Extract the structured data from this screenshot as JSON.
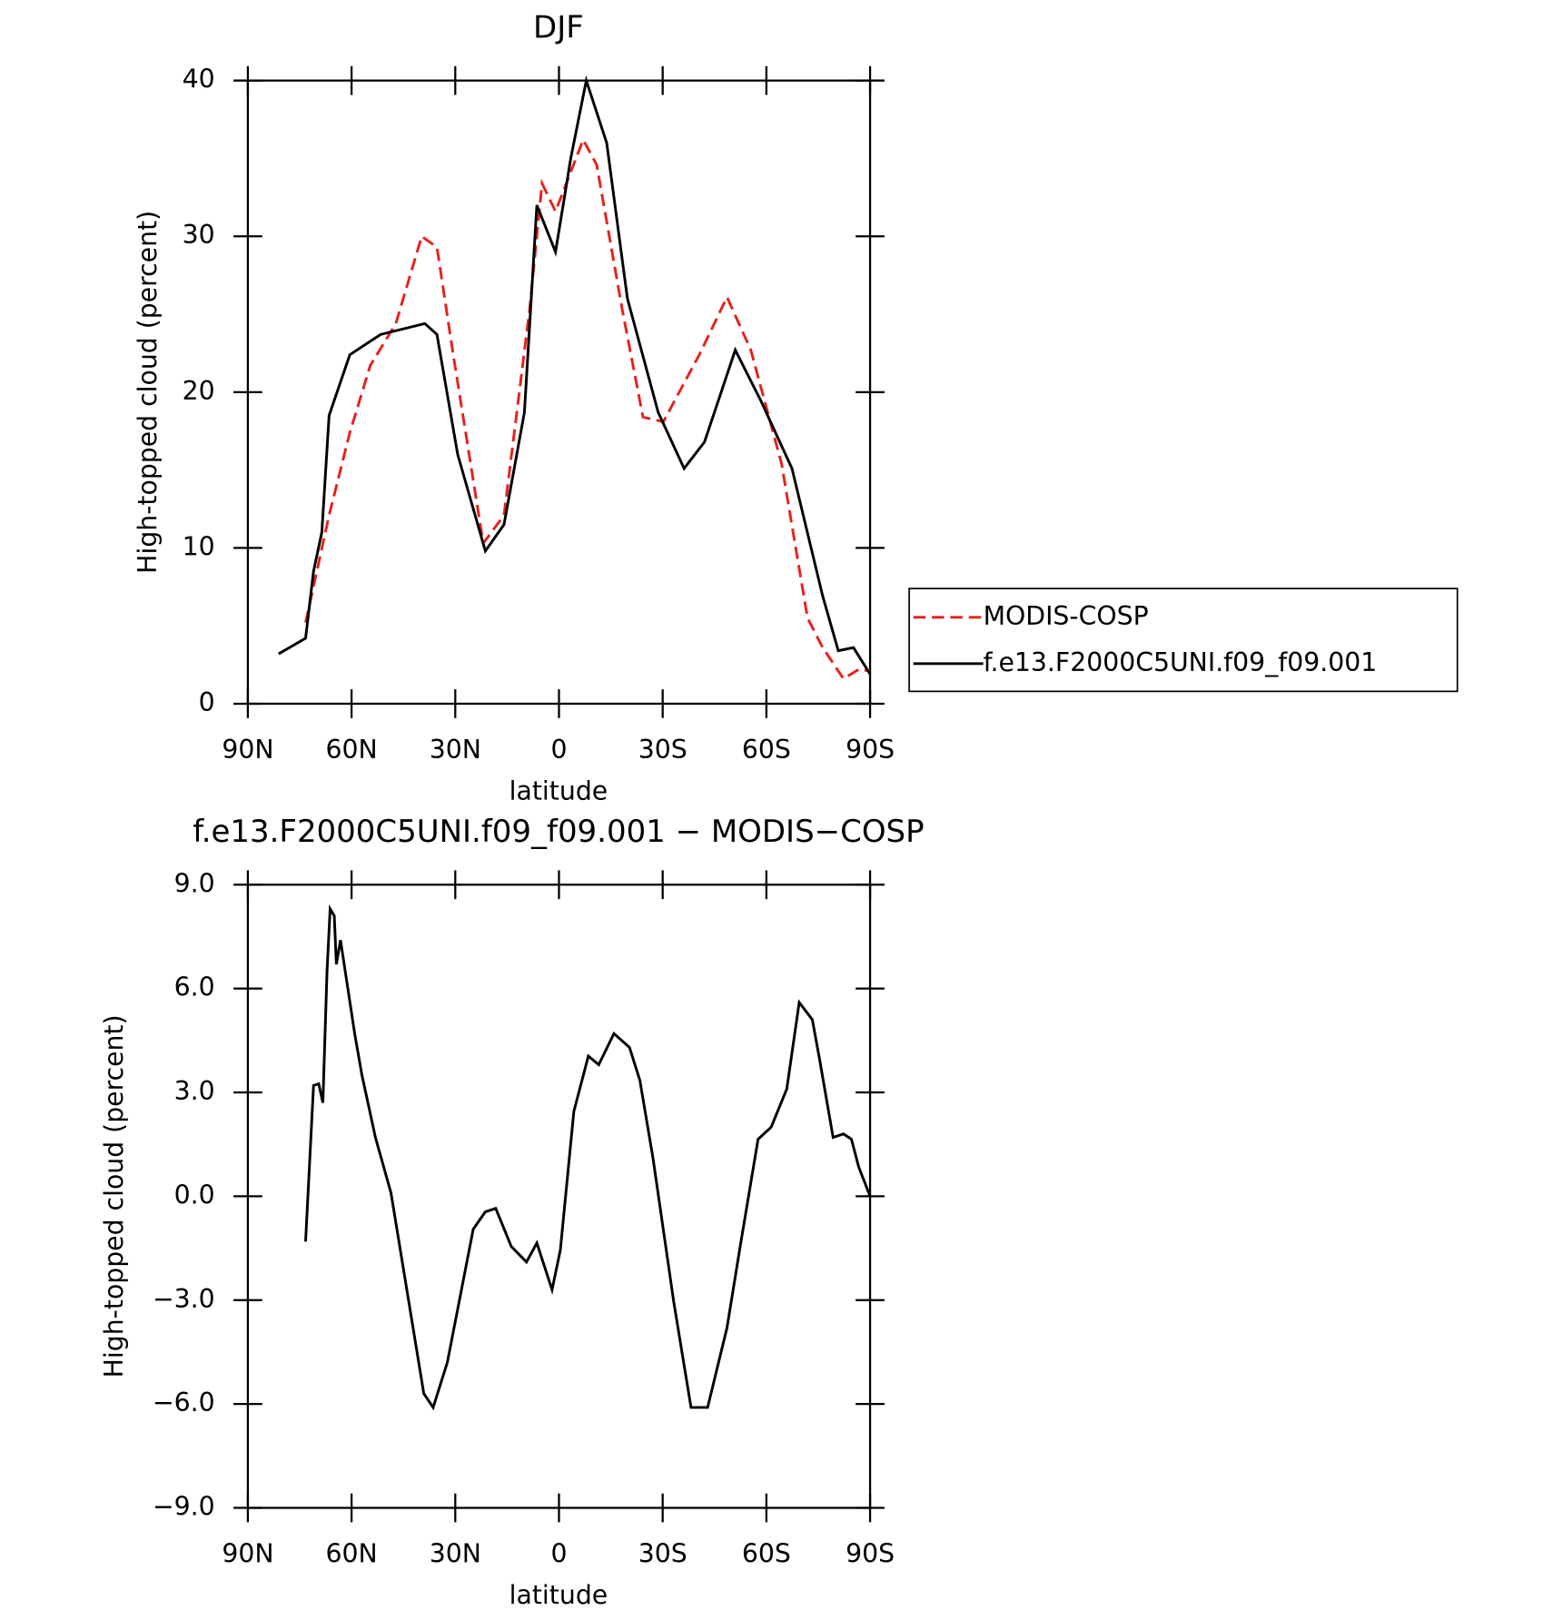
{
  "chart_data": [
    {
      "type": "line",
      "title": "DJF",
      "xlabel": "latitude",
      "ylabel": "High-topped cloud (percent)",
      "xlim": [
        90,
        -90
      ],
      "xticks": [
        {
          "value": 90,
          "label": "90N"
        },
        {
          "value": 60,
          "label": "60N"
        },
        {
          "value": 30,
          "label": "30N"
        },
        0,
        {
          "value": -30,
          "label": "30S"
        },
        {
          "value": -60,
          "label": "60S"
        },
        {
          "value": -90,
          "label": "90S"
        }
      ],
      "ylim": [
        0,
        40
      ],
      "yticks": [
        0,
        10,
        20,
        30,
        40
      ],
      "legend": "outside-right",
      "series": [
        {
          "name": "MODIS-COSP",
          "color": "#e8201c",
          "dash": "dashed",
          "x": [
            73.3,
            66.5,
            60.5,
            54.6,
            47.2,
            39.7,
            35.3,
            30.8,
            21.9,
            15.9,
            8.5,
            4.9,
            1,
            -7,
            -10.9,
            -18.3,
            -24.3,
            -30.2,
            -40.6,
            -48.6,
            -55.5,
            -64.4,
            -71.9,
            -76.3,
            -82.3,
            -86.7,
            -90
          ],
          "values": [
            5.2,
            12.1,
            17.4,
            21.7,
            24.4,
            30,
            29.3,
            22.7,
            10.3,
            12.1,
            25.3,
            33.4,
            31.6,
            36.2,
            34.6,
            25.3,
            18.4,
            18.1,
            22.4,
            26.1,
            22.7,
            15.4,
            5.5,
            3.6,
            1.6,
            2.2,
            2.1
          ]
        },
        {
          "name": "f.e13.F2000C5UNI.f09_f09.001",
          "color": "#000000",
          "dash": "solid",
          "x": [
            81.1,
            73.3,
            71,
            68.6,
            66.5,
            60.5,
            51.6,
            38.8,
            35.3,
            29.3,
            21.3,
            15.9,
            10,
            6.4,
            1,
            -3.4,
            -7.9,
            -13.8,
            -19.8,
            -28.7,
            -36.2,
            -42.1,
            -51,
            -58.5,
            -67.4,
            -76.3,
            -80.8,
            -85.2,
            -90
          ],
          "values": [
            3.2,
            4.2,
            8.5,
            11,
            18.5,
            22.4,
            23.7,
            24.4,
            23.7,
            16,
            9.8,
            11.5,
            18.7,
            32,
            29,
            35,
            40,
            36,
            26,
            18.7,
            15.1,
            16.8,
            22.7,
            19.4,
            15.1,
            6.9,
            3.4,
            3.6,
            1.9
          ]
        }
      ]
    },
    {
      "type": "line",
      "title": "f.e13.F2000C5UNI.f09_f09.001 − MODIS−COSP",
      "xlabel": "latitude",
      "ylabel": "High-topped cloud (percent)",
      "xlim": [
        90,
        -90
      ],
      "xticks": [
        {
          "value": 90,
          "label": "90N"
        },
        {
          "value": 60,
          "label": "60N"
        },
        {
          "value": 30,
          "label": "30N"
        },
        0,
        {
          "value": -30,
          "label": "30S"
        },
        {
          "value": -60,
          "label": "60S"
        },
        {
          "value": -90,
          "label": "90S"
        }
      ],
      "ylim": [
        -9,
        9
      ],
      "yticks": [
        {
          "value": -9,
          "label": "−9.0"
        },
        {
          "value": -6,
          "label": "−6.0"
        },
        {
          "value": -3,
          "label": "−3.0"
        },
        {
          "value": 0,
          "label": "0.0"
        },
        {
          "value": 3,
          "label": "3.0"
        },
        {
          "value": 6,
          "label": "6.0"
        },
        {
          "value": 9,
          "label": "9.0"
        }
      ],
      "series": [
        {
          "color": "#000000",
          "dash": "solid",
          "x": [
            73.3,
            71,
            69.5,
            68.3,
            67.1,
            66.2,
            65,
            64.4,
            63.2,
            59.1,
            57,
            53.1,
            48.6,
            42.7,
            39.1,
            36.4,
            32.3,
            24.8,
            21.3,
            18.3,
            13.8,
            9.4,
            6.4,
            2,
            -0.4,
            -4.3,
            -8.5,
            -11.5,
            -15.9,
            -20.4,
            -23.4,
            -27.2,
            -33.2,
            -38.2,
            -43,
            -48.6,
            -52.5,
            -57.6,
            -61.4,
            -65.9,
            -69.5,
            -73.3,
            -75.4,
            -79.3,
            -82.3,
            -84.6,
            -86.7,
            -90
          ],
          "values": [
            -1.31,
            3.2,
            3.25,
            2.7,
            6.5,
            8.3,
            8.1,
            6.7,
            7.4,
            4.7,
            3.5,
            1.7,
            0.1,
            -3.5,
            -5.7,
            -6.1,
            -4.8,
            -0.95,
            -0.45,
            -0.35,
            -1.45,
            -1.9,
            -1.35,
            -2.7,
            -1.55,
            2.45,
            4.05,
            3.8,
            4.7,
            4.3,
            3.35,
            1.1,
            -3.05,
            -6.1,
            -6.1,
            -3.8,
            -1.4,
            1.65,
            2.0,
            3.1,
            5.6,
            5.1,
            3.95,
            1.7,
            1.8,
            1.65,
            0.85,
            0
          ]
        }
      ]
    }
  ]
}
